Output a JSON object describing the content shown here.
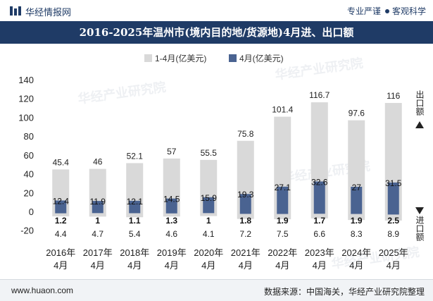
{
  "header": {
    "brand": "华经情报网",
    "tagline_left": "专业严谨",
    "tagline_right": "客观科学"
  },
  "title": "2016-2025年温州市(境内目的地/货源地)4月进、出口额",
  "footer": {
    "url": "www.huaon.com",
    "source": "数据来源：中国海关，华经产业研究院整理"
  },
  "side_labels": {
    "export": "出口额",
    "import": "进口额"
  },
  "watermark_text": "华经产业研究院",
  "colors": {
    "title_bg": "#1f3b66",
    "cumulative_bar": "#d9d9d9",
    "monthly_bar": "#4a6391"
  },
  "chart_data": {
    "type": "bar",
    "categories": [
      "2016年\n4月",
      "2017年\n4月",
      "2018年\n4月",
      "2019年\n4月",
      "2020年\n4月",
      "2021年\n4月",
      "2022年\n4月",
      "2023年\n4月",
      "2024年\n4月",
      "2025年\n4月"
    ],
    "ylim": [
      -20,
      140
    ],
    "yticks": [
      -20,
      0,
      20,
      40,
      60,
      80,
      100,
      120,
      140
    ],
    "series": [
      {
        "name": "1-4月(亿美元)",
        "role": "export_cumulative",
        "values": [
          45.4,
          46,
          52.1,
          57,
          55.5,
          75.8,
          101.4,
          116.7,
          97.6,
          116
        ]
      },
      {
        "name": "4月(亿美元)",
        "role": "export_month",
        "values": [
          12.4,
          11.9,
          12.1,
          14.5,
          15.9,
          19.3,
          27.1,
          32.6,
          27,
          31.5
        ]
      },
      {
        "name": "1-4月(亿美元)",
        "role": "import_cumulative",
        "values": [
          4.4,
          4.7,
          5.4,
          4.6,
          4.1,
          7.2,
          7.5,
          6.6,
          8.3,
          8.9
        ]
      },
      {
        "name": "4月(亿美元)",
        "role": "import_month",
        "values": [
          1.2,
          1,
          1.1,
          1.3,
          1,
          1.8,
          1.9,
          1.7,
          1.9,
          2.5
        ]
      }
    ]
  }
}
